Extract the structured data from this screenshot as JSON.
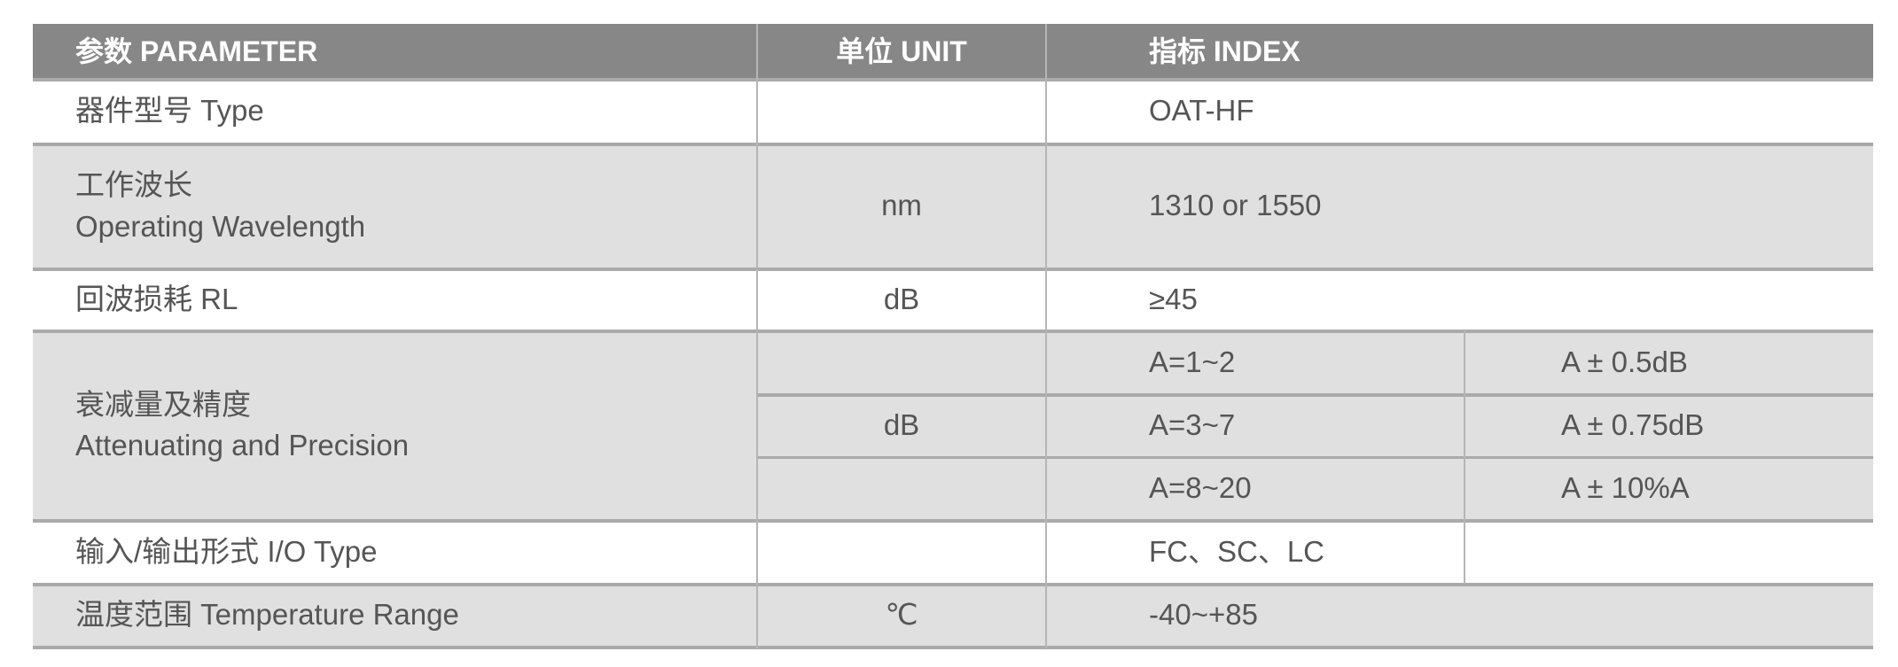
{
  "header": {
    "parameter": "参数  PARAMETER",
    "unit": "单位  UNIT",
    "index": "指标  INDEX"
  },
  "rows": {
    "type": {
      "param": "器件型号 Type",
      "unit": "",
      "index": "OAT-HF"
    },
    "wavelength": {
      "param_cn": "工作波长",
      "param_en": "Operating Wavelength",
      "unit": "nm",
      "index": "1310 or 1550"
    },
    "rl": {
      "param": "回波损耗 RL",
      "unit": "dB",
      "index": "≥45"
    },
    "attenuation": {
      "param_cn": "衰减量及精度",
      "param_en": "Attenuating and Precision",
      "unit": "dB",
      "sub": [
        {
          "range": "A=1~2",
          "precision": "A ± 0.5dB"
        },
        {
          "range": "A=3~7",
          "precision": "A ± 0.75dB"
        },
        {
          "range": "A=8~20",
          "precision": "A ± 10%A"
        }
      ]
    },
    "io": {
      "param": "输入/输出形式 I/O Type",
      "unit": "",
      "index": "FC、SC、LC"
    },
    "temp": {
      "param": "温度范围 Temperature Range",
      "unit": "℃",
      "index": "-40~+85"
    }
  },
  "colors": {
    "header_bg": "#878787",
    "shaded_row": "#e0e0e0",
    "text": "#555555"
  }
}
